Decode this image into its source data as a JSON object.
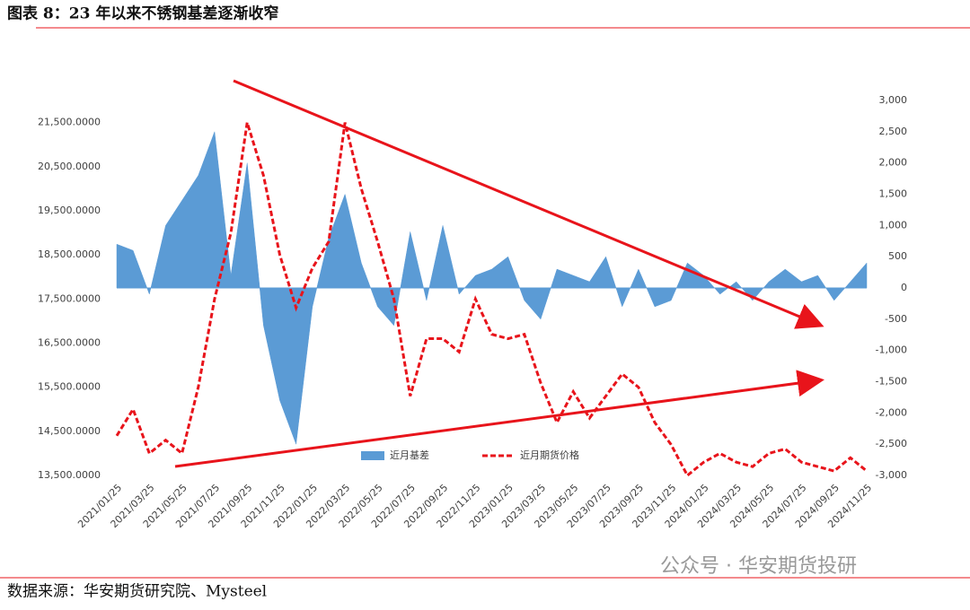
{
  "title": "图表 8：23 年以来不锈钢基差逐渐收窄",
  "source": "数据来源：华安期货研究院、Mysteel",
  "watermark": "公众号 · 华安期货投研",
  "chart_data": {
    "type": "area-line",
    "categories": [
      "2021/01/25",
      null,
      "2021/03/25",
      null,
      "2021/05/25",
      null,
      "2021/07/25",
      null,
      "2021/09/25",
      null,
      "2021/11/25",
      null,
      "2022/01/25",
      null,
      "2022/03/25",
      null,
      "2022/05/25",
      null,
      "2022/07/25",
      null,
      "2022/09/25",
      null,
      "2022/11/25",
      null,
      "2023/01/25",
      null,
      "2023/03/25",
      null,
      "2023/05/25",
      null,
      "2023/07/25",
      null,
      "2023/09/25",
      null,
      "2023/11/25",
      null,
      "2024/01/25",
      null,
      "2024/03/25",
      null,
      "2024/05/25",
      null,
      "2024/07/25",
      null,
      "2024/09/25",
      null,
      "2024/11/25"
    ],
    "series": [
      {
        "name": "近月基差",
        "color": "#5b9bd5",
        "axis": "y2",
        "values": [
          700,
          600,
          -100,
          1000,
          1400,
          1800,
          2500,
          200,
          2000,
          -600,
          -1800,
          -2500,
          -300,
          800,
          1500,
          400,
          -300,
          -600,
          900,
          -200,
          1000,
          -100,
          200,
          300,
          500,
          -200,
          -500,
          300,
          200,
          100,
          500,
          -300,
          300,
          -300,
          -200,
          400,
          200,
          -100,
          100,
          -200,
          100,
          300,
          100,
          200,
          -200,
          100,
          400
        ]
      },
      {
        "name": "近月期货价格",
        "color": "#e8141b",
        "values": [
          14400,
          15000,
          14000,
          14300,
          14000,
          15500,
          17500,
          19000,
          21500,
          20300,
          18500,
          17300,
          18200,
          18800,
          21500,
          20000,
          18800,
          17500,
          15300,
          16600,
          16600,
          16300,
          17500,
          16700,
          16600,
          16700,
          15600,
          14700,
          15400,
          14800,
          15300,
          15800,
          15500,
          14700,
          14200,
          13500,
          13800,
          14000,
          13800,
          13700,
          14000,
          14100,
          13800,
          13700,
          13600,
          13900,
          13600
        ]
      }
    ],
    "ylim": [
      13500,
      22000
    ],
    "yticks": [
      {
        "value": 13500,
        "label": "13,500.0000"
      },
      {
        "value": 14500,
        "label": "14,500.0000"
      },
      {
        "value": 15500,
        "label": "15,500.0000"
      },
      {
        "value": 16500,
        "label": "16,500.0000"
      },
      {
        "value": 17500,
        "label": "17,500.0000"
      },
      {
        "value": 18500,
        "label": "18,500.0000"
      },
      {
        "value": 19500,
        "label": "19,500.0000"
      },
      {
        "value": 20500,
        "label": "20,500.0000"
      },
      {
        "value": 21500,
        "label": "21,500.0000"
      }
    ],
    "y2lim": [
      -3000,
      3000
    ],
    "y2ticks": [
      {
        "value": -3000,
        "label": "-3,000"
      },
      {
        "value": -2500,
        "label": "-2,500"
      },
      {
        "value": -2000,
        "label": "-2,000"
      },
      {
        "value": -1500,
        "label": "-1,500"
      },
      {
        "value": -1000,
        "label": "-1,000"
      },
      -500,
      0,
      500,
      {
        "value": 1000,
        "label": "1,000"
      },
      {
        "value": 1500,
        "label": "1,500"
      },
      {
        "value": 2000,
        "label": "2,000"
      },
      {
        "value": 2500,
        "label": "2,500"
      },
      {
        "value": 3000,
        "label": "3,000"
      }
    ]
  }
}
